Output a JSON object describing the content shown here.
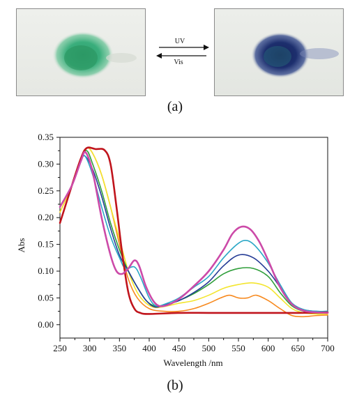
{
  "photos": {
    "left": {
      "icon": "green-powder-photo",
      "color": "#3aa878"
    },
    "right": {
      "icon": "blue-powder-photo",
      "color": "#1d2f6e"
    }
  },
  "arrows": {
    "forward_label": "UV",
    "reverse_label": "Vis"
  },
  "panel_labels": {
    "top": "(a)",
    "bottom": "(b)"
  },
  "chart_data": {
    "type": "line",
    "xlabel": "Wavelength /nm",
    "ylabel": "Abs",
    "xlim": [
      250,
      700
    ],
    "ylim": [
      -0.025,
      0.35
    ],
    "xticks": [
      250,
      300,
      350,
      400,
      450,
      500,
      550,
      600,
      650,
      700
    ],
    "yticks": [
      0.0,
      0.05,
      0.1,
      0.15,
      0.2,
      0.25,
      0.3,
      0.35
    ],
    "ytick_labels": [
      "0.00",
      "0.05",
      "0.10",
      "0.15",
      "0.20",
      "0.25",
      "0.30",
      "0.35"
    ],
    "grid": false,
    "series": [
      {
        "color": "#c0141c",
        "points": [
          [
            250,
            0.19
          ],
          [
            270,
            0.26
          ],
          [
            285,
            0.31
          ],
          [
            295,
            0.33
          ],
          [
            310,
            0.328
          ],
          [
            325,
            0.326
          ],
          [
            335,
            0.3
          ],
          [
            345,
            0.22
          ],
          [
            355,
            0.13
          ],
          [
            365,
            0.06
          ],
          [
            375,
            0.03
          ],
          [
            385,
            0.022
          ],
          [
            400,
            0.02
          ],
          [
            450,
            0.022
          ],
          [
            500,
            0.022
          ],
          [
            550,
            0.022
          ],
          [
            600,
            0.022
          ],
          [
            650,
            0.022
          ],
          [
            700,
            0.023
          ]
        ]
      },
      {
        "color": "#f7891e",
        "points": [
          [
            250,
            0.21
          ],
          [
            270,
            0.26
          ],
          [
            285,
            0.31
          ],
          [
            295,
            0.33
          ],
          [
            305,
            0.32
          ],
          [
            320,
            0.28
          ],
          [
            335,
            0.22
          ],
          [
            350,
            0.15
          ],
          [
            365,
            0.085
          ],
          [
            380,
            0.05
          ],
          [
            400,
            0.03
          ],
          [
            425,
            0.025
          ],
          [
            450,
            0.025
          ],
          [
            475,
            0.03
          ],
          [
            500,
            0.04
          ],
          [
            520,
            0.05
          ],
          [
            535,
            0.055
          ],
          [
            550,
            0.05
          ],
          [
            565,
            0.05
          ],
          [
            580,
            0.055
          ],
          [
            600,
            0.045
          ],
          [
            620,
            0.03
          ],
          [
            640,
            0.017
          ],
          [
            660,
            0.015
          ],
          [
            680,
            0.017
          ],
          [
            700,
            0.018
          ]
        ]
      },
      {
        "color": "#f3e52e",
        "points": [
          [
            250,
            0.21
          ],
          [
            270,
            0.26
          ],
          [
            285,
            0.31
          ],
          [
            295,
            0.33
          ],
          [
            305,
            0.32
          ],
          [
            320,
            0.28
          ],
          [
            335,
            0.22
          ],
          [
            350,
            0.16
          ],
          [
            365,
            0.1
          ],
          [
            380,
            0.06
          ],
          [
            395,
            0.04
          ],
          [
            410,
            0.032
          ],
          [
            430,
            0.035
          ],
          [
            450,
            0.04
          ],
          [
            475,
            0.045
          ],
          [
            500,
            0.055
          ],
          [
            525,
            0.068
          ],
          [
            550,
            0.075
          ],
          [
            575,
            0.078
          ],
          [
            600,
            0.07
          ],
          [
            620,
            0.05
          ],
          [
            640,
            0.03
          ],
          [
            660,
            0.022
          ],
          [
            680,
            0.02
          ],
          [
            700,
            0.02
          ]
        ]
      },
      {
        "color": "#2f9e3a",
        "points": [
          [
            250,
            0.22
          ],
          [
            270,
            0.26
          ],
          [
            285,
            0.31
          ],
          [
            295,
            0.325
          ],
          [
            305,
            0.3
          ],
          [
            320,
            0.25
          ],
          [
            335,
            0.19
          ],
          [
            350,
            0.14
          ],
          [
            365,
            0.1
          ],
          [
            380,
            0.07
          ],
          [
            395,
            0.045
          ],
          [
            410,
            0.035
          ],
          [
            430,
            0.038
          ],
          [
            450,
            0.045
          ],
          [
            475,
            0.058
          ],
          [
            500,
            0.075
          ],
          [
            525,
            0.095
          ],
          [
            550,
            0.105
          ],
          [
            575,
            0.105
          ],
          [
            600,
            0.09
          ],
          [
            620,
            0.06
          ],
          [
            640,
            0.035
          ],
          [
            660,
            0.025
          ],
          [
            680,
            0.022
          ],
          [
            700,
            0.022
          ]
        ]
      },
      {
        "color": "#243b95",
        "points": [
          [
            250,
            0.22
          ],
          [
            270,
            0.26
          ],
          [
            285,
            0.305
          ],
          [
            292,
            0.315
          ],
          [
            305,
            0.29
          ],
          [
            320,
            0.24
          ],
          [
            335,
            0.18
          ],
          [
            350,
            0.13
          ],
          [
            365,
            0.1
          ],
          [
            380,
            0.07
          ],
          [
            395,
            0.045
          ],
          [
            410,
            0.033
          ],
          [
            430,
            0.038
          ],
          [
            450,
            0.045
          ],
          [
            475,
            0.06
          ],
          [
            500,
            0.08
          ],
          [
            525,
            0.11
          ],
          [
            550,
            0.13
          ],
          [
            575,
            0.125
          ],
          [
            600,
            0.1
          ],
          [
            620,
            0.07
          ],
          [
            640,
            0.04
          ],
          [
            660,
            0.028
          ],
          [
            680,
            0.025
          ],
          [
            700,
            0.025
          ]
        ]
      },
      {
        "color": "#2aa7c6",
        "points": [
          [
            250,
            0.22
          ],
          [
            270,
            0.26
          ],
          [
            285,
            0.305
          ],
          [
            292,
            0.315
          ],
          [
            305,
            0.28
          ],
          [
            320,
            0.22
          ],
          [
            335,
            0.165
          ],
          [
            350,
            0.125
          ],
          [
            360,
            0.105
          ],
          [
            375,
            0.108
          ],
          [
            385,
            0.09
          ],
          [
            400,
            0.05
          ],
          [
            412,
            0.035
          ],
          [
            430,
            0.04
          ],
          [
            450,
            0.05
          ],
          [
            475,
            0.07
          ],
          [
            500,
            0.09
          ],
          [
            525,
            0.125
          ],
          [
            550,
            0.152
          ],
          [
            565,
            0.157
          ],
          [
            580,
            0.145
          ],
          [
            600,
            0.115
          ],
          [
            620,
            0.075
          ],
          [
            640,
            0.04
          ],
          [
            660,
            0.028
          ],
          [
            680,
            0.025
          ],
          [
            700,
            0.025
          ]
        ]
      },
      {
        "color": "#cc4aa8",
        "points": [
          [
            250,
            0.22
          ],
          [
            270,
            0.26
          ],
          [
            285,
            0.305
          ],
          [
            293,
            0.322
          ],
          [
            305,
            0.285
          ],
          [
            320,
            0.2
          ],
          [
            335,
            0.13
          ],
          [
            345,
            0.1
          ],
          [
            355,
            0.095
          ],
          [
            365,
            0.105
          ],
          [
            375,
            0.12
          ],
          [
            383,
            0.11
          ],
          [
            395,
            0.07
          ],
          [
            410,
            0.04
          ],
          [
            425,
            0.035
          ],
          [
            450,
            0.048
          ],
          [
            475,
            0.072
          ],
          [
            500,
            0.1
          ],
          [
            525,
            0.14
          ],
          [
            540,
            0.17
          ],
          [
            555,
            0.183
          ],
          [
            570,
            0.178
          ],
          [
            585,
            0.155
          ],
          [
            600,
            0.12
          ],
          [
            620,
            0.07
          ],
          [
            640,
            0.038
          ],
          [
            660,
            0.026
          ],
          [
            680,
            0.023
          ],
          [
            700,
            0.022
          ]
        ]
      }
    ]
  }
}
